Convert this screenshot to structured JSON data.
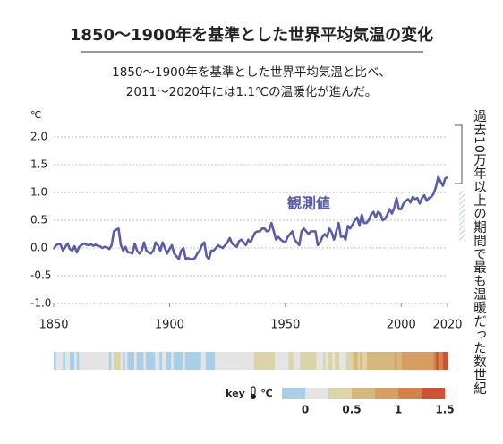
{
  "chart_data": {
    "type": "line",
    "title": "1850〜1900年を基準とした世界平均気温の変化",
    "subtitle": [
      "1850〜1900年を基準とした世界平均気温と比べ、",
      "2011〜2020年には1.1℃の温暖化が進んだ。"
    ],
    "y_unit": "℃",
    "annotation": "観測値",
    "side_note": "過去10万年以上の期間で最も温暖だった数世紀",
    "xlim": [
      1850,
      2020
    ],
    "xticks": [
      1850,
      1900,
      1950,
      2000,
      2020
    ],
    "ylim": [
      -1.0,
      2.0
    ],
    "yticks": [
      {
        "value": 2.0,
        "label": "2.0"
      },
      {
        "value": 1.5,
        "label": "1.5"
      },
      {
        "value": 1.0,
        "label": "1.0"
      },
      {
        "value": 0.5,
        "label": "0.5"
      },
      {
        "value": 0.0,
        "label": "0.0"
      },
      {
        "value": -0.5,
        "label": "-0.5"
      },
      {
        "value": -1.0,
        "label": "-1.0"
      }
    ],
    "grid": true,
    "x": [
      1850,
      1851,
      1852,
      1853,
      1854,
      1855,
      1856,
      1857,
      1858,
      1859,
      1860,
      1861,
      1862,
      1863,
      1864,
      1865,
      1866,
      1867,
      1868,
      1869,
      1870,
      1871,
      1872,
      1873,
      1874,
      1875,
      1876,
      1877,
      1878,
      1879,
      1880,
      1881,
      1882,
      1883,
      1884,
      1885,
      1886,
      1887,
      1888,
      1889,
      1890,
      1891,
      1892,
      1893,
      1894,
      1895,
      1896,
      1897,
      1898,
      1899,
      1900,
      1901,
      1902,
      1903,
      1904,
      1905,
      1906,
      1907,
      1908,
      1909,
      1910,
      1911,
      1912,
      1913,
      1914,
      1915,
      1916,
      1917,
      1918,
      1919,
      1920,
      1921,
      1922,
      1923,
      1924,
      1925,
      1926,
      1927,
      1928,
      1929,
      1930,
      1931,
      1932,
      1933,
      1934,
      1935,
      1936,
      1937,
      1938,
      1939,
      1940,
      1941,
      1942,
      1943,
      1944,
      1945,
      1946,
      1947,
      1948,
      1949,
      1950,
      1951,
      1952,
      1953,
      1954,
      1955,
      1956,
      1957,
      1958,
      1959,
      1960,
      1961,
      1962,
      1963,
      1964,
      1965,
      1966,
      1967,
      1968,
      1969,
      1970,
      1971,
      1972,
      1973,
      1974,
      1975,
      1976,
      1977,
      1978,
      1979,
      1980,
      1981,
      1982,
      1983,
      1984,
      1985,
      1986,
      1987,
      1988,
      1989,
      1990,
      1991,
      1992,
      1993,
      1994,
      1995,
      1996,
      1997,
      1998,
      1999,
      2000,
      2001,
      2002,
      2003,
      2004,
      2005,
      2006,
      2007,
      2008,
      2009,
      2010,
      2011,
      2012,
      2013,
      2014,
      2015,
      2016,
      2017,
      2018,
      2019,
      2020
    ],
    "series": [
      {
        "color": "#5b5ea6",
        "values": [
          -0.02,
          0.05,
          0.07,
          0.06,
          -0.05,
          0.02,
          0.08,
          -0.02,
          -0.05,
          0.03,
          -0.08,
          0.02,
          0.05,
          0.08,
          0.06,
          0.05,
          0.07,
          0.04,
          0.06,
          0.04,
          0.03,
          0.0,
          0.02,
          0.01,
          -0.02,
          0.05,
          0.3,
          0.33,
          0.35,
          0.05,
          -0.05,
          0.02,
          -0.08,
          -0.08,
          -0.1,
          0.08,
          -0.05,
          -0.1,
          -0.05,
          0.1,
          -0.05,
          -0.08,
          -0.1,
          -0.05,
          0.1,
          0.05,
          -0.05,
          0.1,
          0.0,
          -0.1,
          -0.02,
          0.05,
          -0.1,
          -0.15,
          -0.2,
          -0.05,
          0.0,
          -0.2,
          -0.18,
          -0.2,
          -0.2,
          -0.18,
          -0.1,
          -0.05,
          0.05,
          0.1,
          -0.15,
          -0.2,
          -0.05,
          -0.05,
          0.0,
          0.05,
          0.02,
          0.0,
          0.05,
          0.1,
          0.18,
          0.08,
          0.05,
          0.02,
          0.12,
          0.15,
          0.1,
          0.05,
          0.15,
          0.1,
          0.2,
          0.28,
          0.3,
          0.3,
          0.35,
          0.35,
          0.3,
          0.32,
          0.45,
          0.3,
          0.15,
          0.2,
          0.15,
          0.12,
          0.1,
          0.2,
          0.25,
          0.3,
          0.15,
          0.1,
          0.05,
          0.3,
          0.35,
          0.3,
          0.25,
          0.3,
          0.3,
          0.3,
          0.05,
          0.1,
          0.2,
          0.25,
          0.2,
          0.35,
          0.28,
          0.15,
          0.3,
          0.45,
          0.2,
          0.22,
          0.15,
          0.4,
          0.35,
          0.42,
          0.5,
          0.55,
          0.4,
          0.6,
          0.45,
          0.45,
          0.5,
          0.6,
          0.65,
          0.55,
          0.65,
          0.62,
          0.5,
          0.52,
          0.6,
          0.7,
          0.62,
          0.72,
          0.9,
          0.7,
          0.7,
          0.8,
          0.85,
          0.88,
          0.82,
          0.92,
          0.88,
          0.9,
          0.8,
          0.9,
          0.95,
          0.85,
          0.9,
          0.92,
          0.98,
          1.1,
          1.28,
          1.2,
          1.12,
          1.25,
          1.28
        ]
      }
    ],
    "key": {
      "label": "key",
      "unit": "℃",
      "colors": [
        "#a9cfe8",
        "#e4e4e4",
        "#dcd3a8",
        "#d6b87c",
        "#d89d60",
        "#d6804a",
        "#cc5337"
      ],
      "edges": [
        -0.25,
        0,
        0.25,
        0.5,
        0.75,
        1,
        1.25,
        1.5
      ],
      "ticks": [
        0,
        0.5,
        1,
        1.5
      ]
    }
  }
}
